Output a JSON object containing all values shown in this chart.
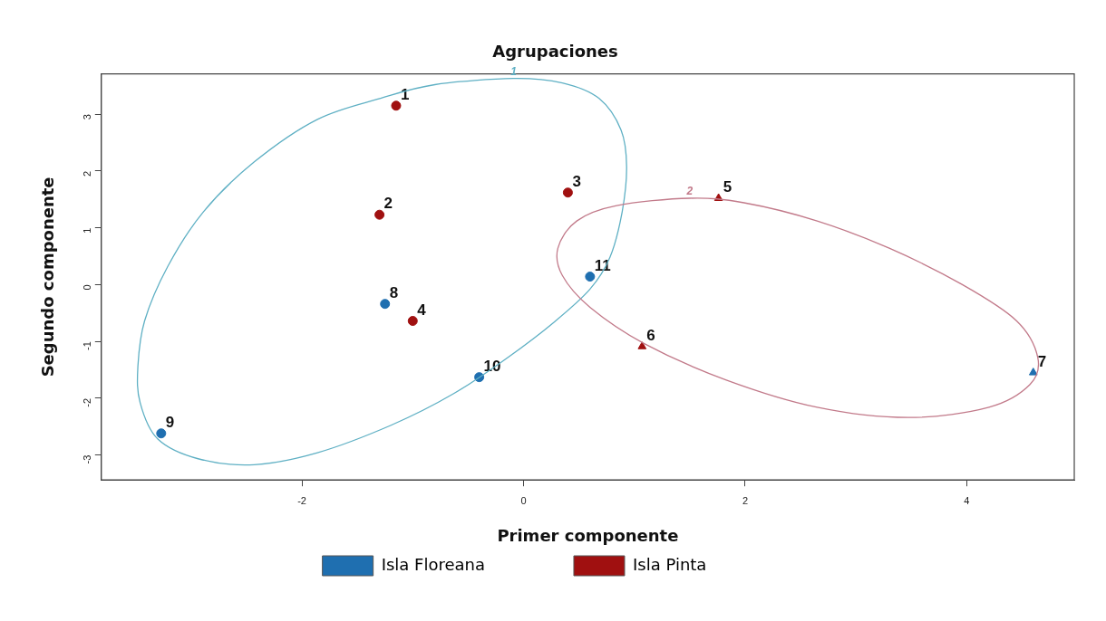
{
  "chart_data": {
    "type": "scatter",
    "title": "Agrupaciones",
    "xlabel": "Primer componente",
    "ylabel": "Segundo componente",
    "xlim": [
      -3.81,
      4.97
    ],
    "xticks": [
      -2,
      0,
      2,
      4
    ],
    "ylim": [
      -3.44,
      3.71
    ],
    "yticks": [
      -3,
      -2,
      -1,
      0,
      1,
      2,
      3
    ],
    "grid": false,
    "legend": "bottom",
    "series": [
      {
        "name": "Isla Floreana",
        "color": "#1f6fb0",
        "marker": "circle",
        "x": [
          -1.25,
          -3.27,
          -0.4,
          0.6
        ],
        "values": [
          -0.34,
          -2.62,
          -1.63,
          0.14
        ]
      },
      {
        "color": "#1f6fb0",
        "marker": "triangle",
        "x": [
          4.6
        ],
        "values": [
          -1.55
        ]
      },
      {
        "name": "Isla Pinta",
        "color": "#a01010",
        "marker": "circle",
        "x": [
          -1.15,
          -1.3,
          0.4,
          -1.0
        ],
        "values": [
          3.15,
          1.23,
          1.62,
          -0.64
        ]
      },
      {
        "color": "#a01010",
        "marker": "triangle",
        "x": [
          1.76,
          1.07
        ],
        "values": [
          1.52,
          -1.09
        ]
      }
    ],
    "annotations": [
      {
        "text": "1",
        "x": -1.15,
        "y": 3.15
      },
      {
        "text": "2",
        "x": -1.3,
        "y": 1.23
      },
      {
        "text": "3",
        "x": 0.4,
        "y": 1.62
      },
      {
        "text": "4",
        "x": -1.0,
        "y": -0.64
      },
      {
        "text": "5",
        "x": 1.76,
        "y": 1.52
      },
      {
        "text": "6",
        "x": 1.07,
        "y": -1.09
      },
      {
        "text": "7",
        "x": 4.6,
        "y": -1.55
      },
      {
        "text": "8",
        "x": -1.25,
        "y": -0.34
      },
      {
        "text": "9",
        "x": -3.27,
        "y": -2.62
      },
      {
        "text": "10",
        "x": -0.4,
        "y": -1.63
      },
      {
        "text": "11",
        "x": 0.6,
        "y": 0.14
      },
      "1",
      "2"
    ]
  }
}
